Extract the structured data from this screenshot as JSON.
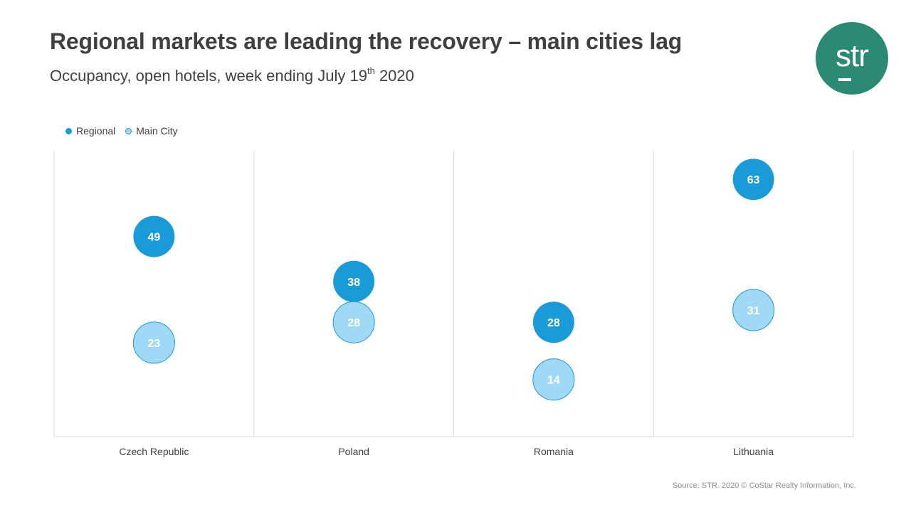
{
  "header": {
    "title": "Regional markets are leading the recovery – main cities lag",
    "subtitle_main": "Occupancy, open hotels, week ending July 19",
    "subtitle_sup": "th",
    "subtitle_end": " 2020"
  },
  "logo": {
    "text": "str",
    "color": "#2b8a73"
  },
  "colors": {
    "regional": "#1a9ad6",
    "main_city": "#9fd9f5",
    "grid": "#d9d9d9"
  },
  "chart_data": {
    "type": "scatter",
    "title": "Regional markets are leading the recovery – main cities lag",
    "subtitle": "Occupancy, open hotels, week ending July 19th 2020",
    "categories": [
      "Czech Republic",
      "Poland",
      "Romania",
      "Lithuania"
    ],
    "series": [
      {
        "name": "Regional",
        "values": [
          49,
          38,
          28,
          63
        ]
      },
      {
        "name": "Main City",
        "values": [
          23,
          28,
          14,
          31
        ]
      }
    ],
    "ylim": [
      0,
      70
    ],
    "legend": "top-left",
    "grid": false
  },
  "footer": {
    "source": "Source: STR. 2020 © CoStar Realty Information, Inc."
  }
}
